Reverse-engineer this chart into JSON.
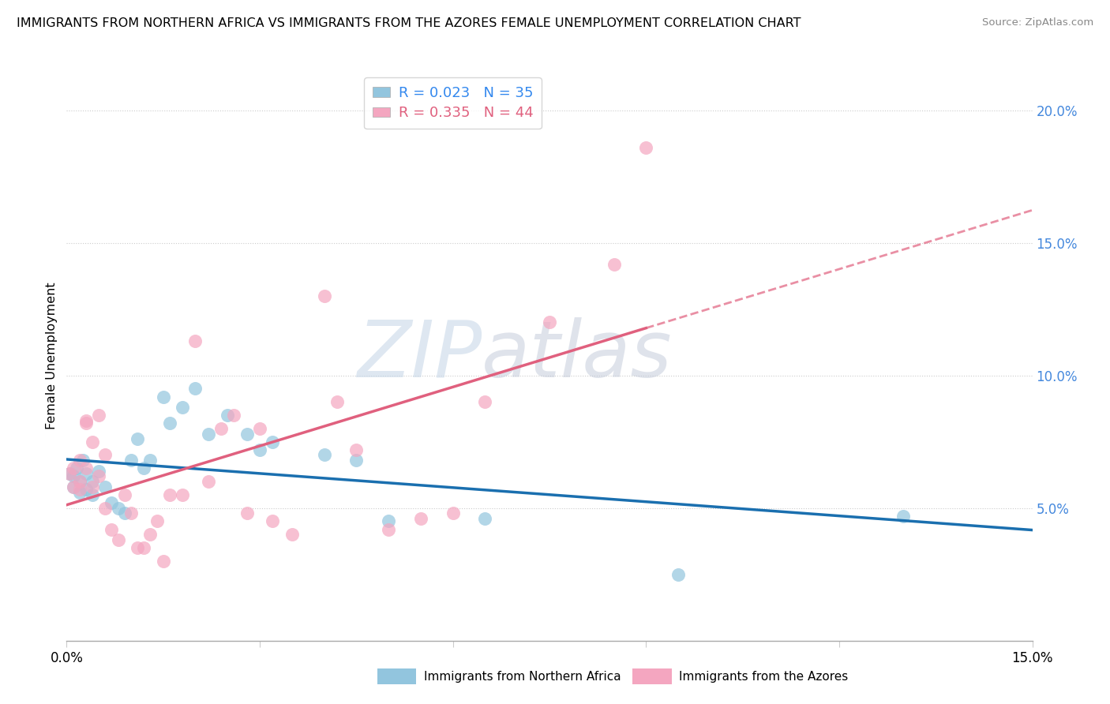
{
  "title": "IMMIGRANTS FROM NORTHERN AFRICA VS IMMIGRANTS FROM THE AZORES FEMALE UNEMPLOYMENT CORRELATION CHART",
  "source": "Source: ZipAtlas.com",
  "ylabel": "Female Unemployment",
  "xlim": [
    0,
    0.15
  ],
  "ylim": [
    0,
    0.215
  ],
  "yticks": [
    0.05,
    0.1,
    0.15,
    0.2
  ],
  "ytick_labels": [
    "5.0%",
    "10.0%",
    "15.0%",
    "20.0%"
  ],
  "xticks": [
    0.0,
    0.03,
    0.06,
    0.09,
    0.12,
    0.15
  ],
  "xtick_labels": [
    "0.0%",
    "",
    "",
    "",
    "",
    "15.0%"
  ],
  "legend_entry1_r": "0.023",
  "legend_entry1_n": "35",
  "legend_entry2_r": "0.335",
  "legend_entry2_n": "44",
  "legend_label1": "Immigrants from Northern Africa",
  "legend_label2": "Immigrants from the Azores",
  "color_blue": "#92c5de",
  "color_pink": "#f4a6c0",
  "line_color_blue": "#1a6faf",
  "line_color_pink": "#e0607e",
  "watermark_zip": "ZIP",
  "watermark_atlas": "atlas",
  "blue_x": [
    0.0005,
    0.001,
    0.001,
    0.0015,
    0.002,
    0.002,
    0.0025,
    0.003,
    0.003,
    0.004,
    0.004,
    0.005,
    0.006,
    0.007,
    0.008,
    0.009,
    0.01,
    0.011,
    0.012,
    0.013,
    0.015,
    0.016,
    0.018,
    0.02,
    0.022,
    0.025,
    0.028,
    0.03,
    0.032,
    0.04,
    0.045,
    0.05,
    0.065,
    0.095,
    0.13
  ],
  "blue_y": [
    0.063,
    0.062,
    0.058,
    0.065,
    0.06,
    0.056,
    0.068,
    0.063,
    0.057,
    0.06,
    0.055,
    0.064,
    0.058,
    0.052,
    0.05,
    0.048,
    0.068,
    0.076,
    0.065,
    0.068,
    0.092,
    0.082,
    0.088,
    0.095,
    0.078,
    0.085,
    0.078,
    0.072,
    0.075,
    0.07,
    0.068,
    0.045,
    0.046,
    0.025,
    0.047
  ],
  "pink_x": [
    0.0005,
    0.001,
    0.001,
    0.002,
    0.002,
    0.002,
    0.003,
    0.003,
    0.003,
    0.004,
    0.004,
    0.005,
    0.005,
    0.006,
    0.006,
    0.007,
    0.008,
    0.009,
    0.01,
    0.011,
    0.012,
    0.013,
    0.014,
    0.015,
    0.016,
    0.018,
    0.02,
    0.022,
    0.024,
    0.026,
    0.028,
    0.03,
    0.032,
    0.035,
    0.04,
    0.042,
    0.045,
    0.05,
    0.055,
    0.06,
    0.065,
    0.075,
    0.085,
    0.09
  ],
  "pink_y": [
    0.063,
    0.058,
    0.065,
    0.06,
    0.068,
    0.057,
    0.082,
    0.083,
    0.065,
    0.058,
    0.075,
    0.085,
    0.062,
    0.05,
    0.07,
    0.042,
    0.038,
    0.055,
    0.048,
    0.035,
    0.035,
    0.04,
    0.045,
    0.03,
    0.055,
    0.055,
    0.113,
    0.06,
    0.08,
    0.085,
    0.048,
    0.08,
    0.045,
    0.04,
    0.13,
    0.09,
    0.072,
    0.042,
    0.046,
    0.048,
    0.09,
    0.12,
    0.142,
    0.186
  ],
  "R_blue": 0.023,
  "N_blue": 35,
  "R_pink": 0.335,
  "N_pink": 44
}
